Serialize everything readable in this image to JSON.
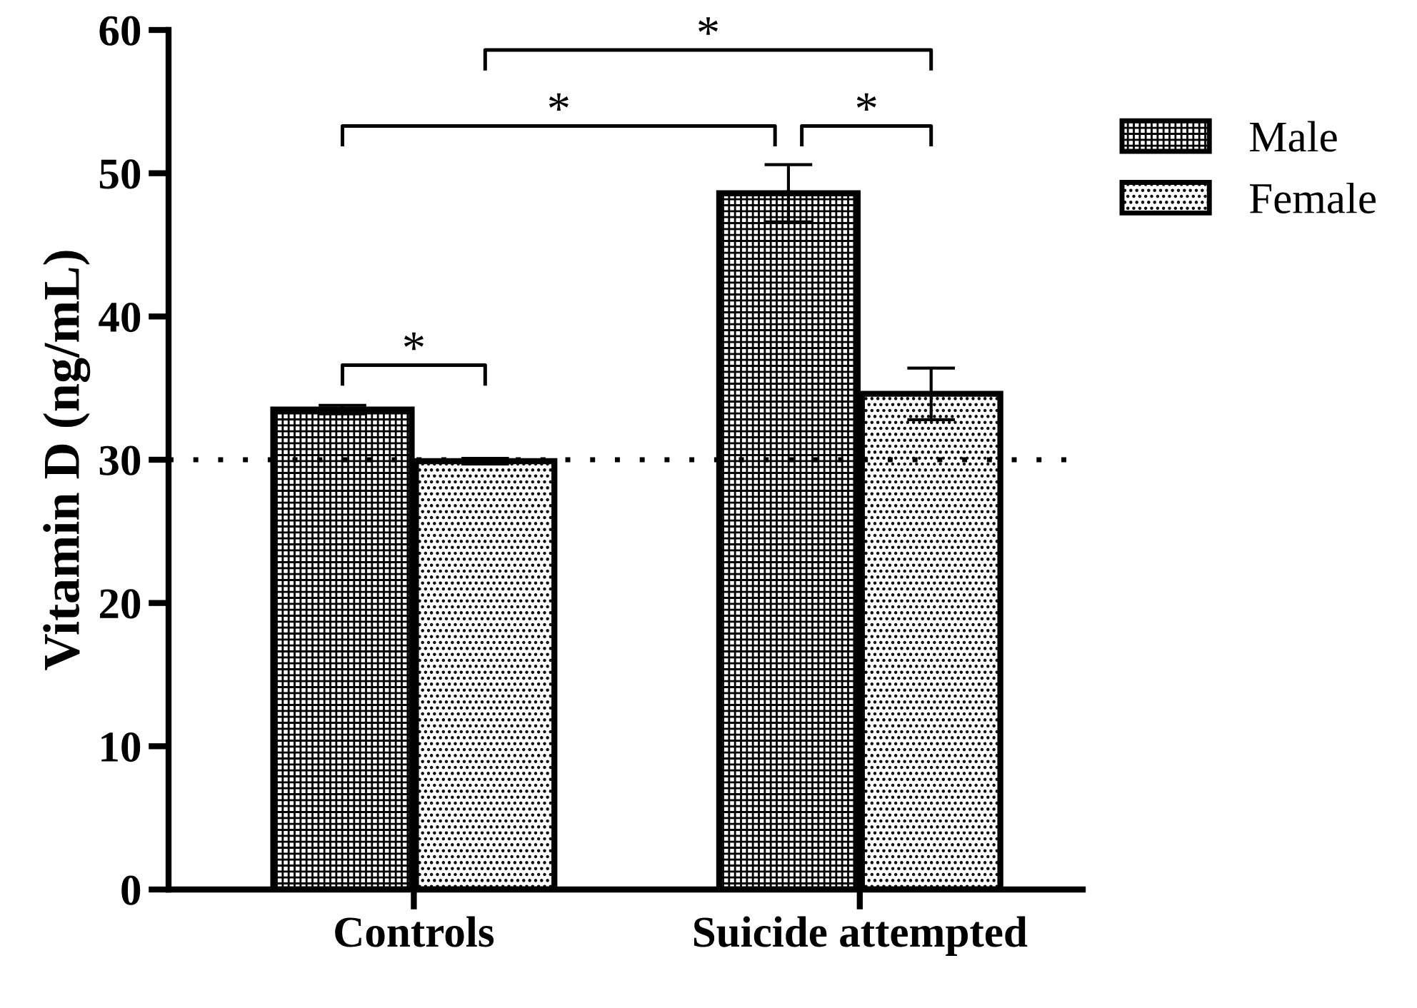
{
  "chart_data": {
    "type": "bar",
    "ylabel": "Vitamin D (ng/mL)",
    "categories": [
      "Controls",
      "Suicide attempted"
    ],
    "series": [
      {
        "name": "Male",
        "color": "#000000",
        "values": [
          33.5,
          48.6
        ],
        "errors": [
          0.3,
          2.0
        ]
      },
      {
        "name": "Female",
        "color": "#000000",
        "values": [
          29.9,
          34.6
        ],
        "errors": [
          0.2,
          1.8
        ]
      }
    ],
    "ylim": [
      0,
      60
    ],
    "yticks": [
      0,
      10,
      20,
      30,
      40,
      50,
      60
    ],
    "ref_lines": [
      {
        "axis": "y",
        "value": 30,
        "line_style": "dotted",
        "color": "#000000"
      }
    ],
    "annotations": [
      "*",
      "*",
      "*",
      "*"
    ],
    "grid": false,
    "legend": "top right"
  }
}
